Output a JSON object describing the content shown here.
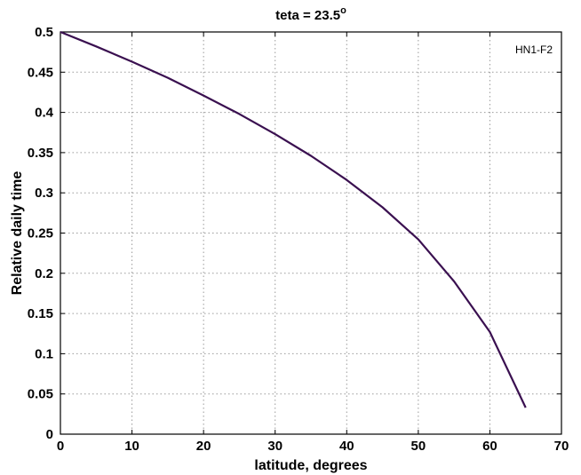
{
  "chart_data": {
    "type": "line",
    "title_main": "teta = 23.5",
    "title_sup": "o",
    "xlabel": "latitude, degrees",
    "ylabel": "Relative daily time",
    "annotation": "HN1-F2",
    "xlim": [
      0,
      70
    ],
    "ylim": [
      0,
      0.5
    ],
    "grid": true,
    "x_ticks": [
      0,
      10,
      20,
      30,
      40,
      50,
      60,
      70
    ],
    "y_ticks": [
      0,
      0.05,
      0.1,
      0.15,
      0.2,
      0.25,
      0.3,
      0.35,
      0.4,
      0.45,
      0.5
    ],
    "x_tick_labels": [
      "0",
      "10",
      "20",
      "30",
      "40",
      "50",
      "60",
      "70"
    ],
    "y_tick_labels": [
      "0",
      "0.05",
      "0.1",
      "0.15",
      "0.2",
      "0.25",
      "0.3",
      "0.35",
      "0.4",
      "0.45",
      "0.5"
    ],
    "series": [
      {
        "color": "#3a1050",
        "x": [
          0,
          5,
          10,
          15,
          20,
          25,
          30,
          35,
          40,
          45,
          50,
          55,
          60,
          65
        ],
        "y": [
          0.5,
          0.482,
          0.463,
          0.443,
          0.421,
          0.398,
          0.373,
          0.346,
          0.316,
          0.282,
          0.242,
          0.19,
          0.127,
          0.033
        ]
      }
    ]
  }
}
